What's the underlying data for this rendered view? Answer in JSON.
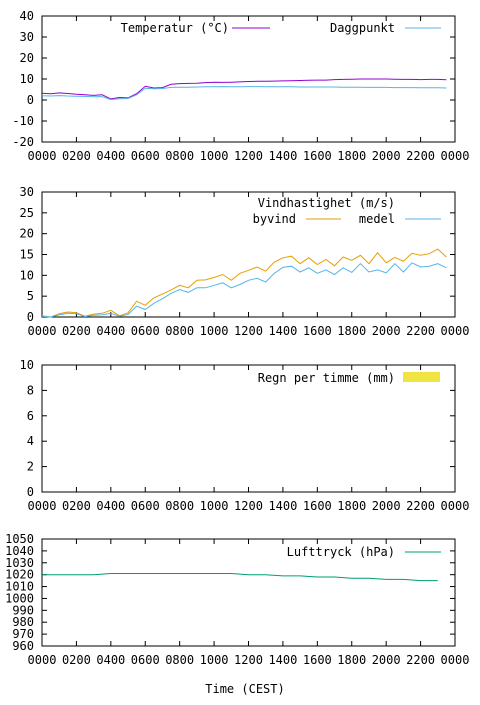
{
  "page": {
    "xlabel": "Time (CEST)"
  },
  "colors": {
    "temp": "#9400d3",
    "dew": "#56b4e9",
    "gust": "#e69f00",
    "wind": "#56b4e9",
    "rain": "#f0e442",
    "pressure": "#009e73"
  },
  "chart_data": [
    {
      "type": "line",
      "title": "",
      "xlabel": "",
      "ylabel": "",
      "ylim": [
        -20,
        40
      ],
      "yticks": [
        "-20",
        "-10",
        "0",
        "10",
        "20",
        "30",
        "40"
      ],
      "x_ticks": [
        "0000",
        "0200",
        "0400",
        "0600",
        "0800",
        "1000",
        "1200",
        "1400",
        "1600",
        "1800",
        "2000",
        "2200",
        "0000"
      ],
      "grid": false,
      "legend_position": "top",
      "x": [
        "00:00",
        "00:30",
        "01:00",
        "01:30",
        "02:00",
        "02:30",
        "03:00",
        "03:30",
        "04:00",
        "04:30",
        "05:00",
        "05:30",
        "06:00",
        "06:30",
        "07:00",
        "07:30",
        "08:00",
        "08:30",
        "09:00",
        "09:30",
        "10:00",
        "10:30",
        "11:00",
        "11:30",
        "12:00",
        "12:30",
        "13:00",
        "13:30",
        "14:00",
        "14:30",
        "15:00",
        "15:30",
        "16:00",
        "16:30",
        "17:00",
        "17:30",
        "18:00",
        "18:30",
        "19:00",
        "19:30",
        "20:00",
        "20:30",
        "21:00",
        "21:30",
        "22:00",
        "22:30",
        "23:00",
        "23:30"
      ],
      "series": [
        {
          "name": "Temperatur (°C)",
          "color_key": "temp",
          "values": [
            3.2,
            3.0,
            3.4,
            3.1,
            2.7,
            2.5,
            2.2,
            2.5,
            0.5,
            1.2,
            1.0,
            3.0,
            6.5,
            5.7,
            5.9,
            7.5,
            7.8,
            7.9,
            8.0,
            8.3,
            8.5,
            8.4,
            8.5,
            8.6,
            8.8,
            8.9,
            8.9,
            9.0,
            9.1,
            9.2,
            9.3,
            9.4,
            9.5,
            9.5,
            9.7,
            9.8,
            9.9,
            10.0,
            10.0,
            10.0,
            10.0,
            9.9,
            9.8,
            9.8,
            9.7,
            9.8,
            9.8,
            9.6
          ]
        },
        {
          "name": "Daggpunkt",
          "color_key": "dew",
          "values": [
            2.0,
            1.9,
            2.1,
            1.9,
            1.8,
            1.7,
            1.5,
            1.6,
            0.2,
            0.6,
            0.7,
            2.5,
            5.6,
            5.4,
            5.5,
            6.0,
            6.1,
            6.1,
            6.2,
            6.3,
            6.3,
            6.4,
            6.3,
            6.3,
            6.4,
            6.4,
            6.3,
            6.3,
            6.3,
            6.3,
            6.2,
            6.2,
            6.2,
            6.2,
            6.2,
            6.1,
            6.1,
            6.1,
            6.0,
            6.0,
            6.0,
            5.9,
            5.9,
            5.9,
            5.8,
            5.8,
            5.8,
            5.7
          ]
        }
      ]
    },
    {
      "type": "line",
      "title": "Vindhastighet (m/s)",
      "xlabel": "",
      "ylabel": "",
      "ylim": [
        0,
        30
      ],
      "yticks": [
        "0",
        "5",
        "10",
        "15",
        "20",
        "25",
        "30"
      ],
      "x_ticks": [
        "0000",
        "0200",
        "0400",
        "0600",
        "0800",
        "1000",
        "1200",
        "1400",
        "1600",
        "1800",
        "2000",
        "2200",
        "0000"
      ],
      "grid": false,
      "legend_position": "top-right",
      "x": [
        "00:00",
        "00:30",
        "01:00",
        "01:30",
        "02:00",
        "02:30",
        "03:00",
        "03:30",
        "04:00",
        "04:30",
        "05:00",
        "05:30",
        "06:00",
        "06:30",
        "07:00",
        "07:30",
        "08:00",
        "08:30",
        "09:00",
        "09:30",
        "10:00",
        "10:30",
        "11:00",
        "11:30",
        "12:00",
        "12:30",
        "13:00",
        "13:30",
        "14:00",
        "14:30",
        "15:00",
        "15:30",
        "16:00",
        "16:30",
        "17:00",
        "17:30",
        "18:00",
        "18:30",
        "19:00",
        "19:30",
        "20:00",
        "20:30",
        "21:00",
        "21:30",
        "22:00",
        "22:30",
        "23:00",
        "23:30"
      ],
      "series": [
        {
          "name": "byvind",
          "color_key": "gust",
          "values": [
            0.3,
            0.0,
            0.8,
            1.2,
            1.0,
            0.2,
            0.7,
            0.9,
            1.6,
            0.3,
            1.0,
            3.8,
            2.8,
            4.6,
            5.5,
            6.5,
            7.6,
            7.0,
            8.8,
            8.9,
            9.5,
            10.2,
            8.8,
            10.5,
            11.2,
            12.0,
            11.0,
            13.2,
            14.2,
            14.6,
            12.8,
            14.2,
            12.6,
            13.8,
            12.3,
            14.4,
            13.6,
            14.8,
            12.8,
            15.4,
            13.0,
            14.3,
            13.4,
            15.3,
            14.8,
            15.2,
            16.3,
            14.4
          ]
        },
        {
          "name": "medel",
          "color_key": "wind",
          "values": [
            0.2,
            0.0,
            0.5,
            0.9,
            0.8,
            0.1,
            0.4,
            0.5,
            0.9,
            0.2,
            0.6,
            2.6,
            1.8,
            3.3,
            4.4,
            5.7,
            6.6,
            5.9,
            7.0,
            7.0,
            7.6,
            8.2,
            7.0,
            7.8,
            8.8,
            9.3,
            8.4,
            10.5,
            11.9,
            12.2,
            10.8,
            11.8,
            10.5,
            11.3,
            10.2,
            11.8,
            10.7,
            12.8,
            10.8,
            11.3,
            10.6,
            12.8,
            10.8,
            13.0,
            12.0,
            12.2,
            12.8,
            11.8
          ]
        }
      ]
    },
    {
      "type": "bar",
      "title": "",
      "xlabel": "",
      "ylabel": "",
      "ylim": [
        0,
        10
      ],
      "yticks": [
        "0",
        "2",
        "4",
        "6",
        "8",
        "10"
      ],
      "x_ticks": [
        "0000",
        "0200",
        "0400",
        "0600",
        "0800",
        "1000",
        "1200",
        "1400",
        "1600",
        "1800",
        "2000",
        "2200",
        "0000"
      ],
      "grid": false,
      "legend_position": "top-right",
      "series": [
        {
          "name": "Regn per timme (mm)",
          "color_key": "rain",
          "values": []
        }
      ]
    },
    {
      "type": "line",
      "title": "",
      "xlabel": "Time (CEST)",
      "ylabel": "",
      "ylim": [
        960,
        1050
      ],
      "yticks": [
        "960",
        "970",
        "980",
        "990",
        "1000",
        "1010",
        "1020",
        "1030",
        "1040",
        "1050"
      ],
      "x_ticks": [
        "0000",
        "0200",
        "0400",
        "0600",
        "0800",
        "1000",
        "1200",
        "1400",
        "1600",
        "1800",
        "2000",
        "2200",
        "0000"
      ],
      "grid": false,
      "legend_position": "top-right",
      "x": [
        "00:00",
        "01:00",
        "02:00",
        "03:00",
        "04:00",
        "05:00",
        "06:00",
        "07:00",
        "08:00",
        "09:00",
        "10:00",
        "11:00",
        "12:00",
        "13:00",
        "14:00",
        "15:00",
        "16:00",
        "17:00",
        "18:00",
        "19:00",
        "20:00",
        "21:00",
        "22:00",
        "23:00"
      ],
      "series": [
        {
          "name": "Lufttryck (hPa)",
          "color_key": "pressure",
          "values": [
            1020,
            1020,
            1020,
            1020,
            1021,
            1021,
            1021,
            1021,
            1021,
            1021,
            1021,
            1021,
            1020,
            1020,
            1019,
            1019,
            1018,
            1018,
            1017,
            1017,
            1016,
            1016,
            1015,
            1015
          ]
        }
      ]
    }
  ]
}
